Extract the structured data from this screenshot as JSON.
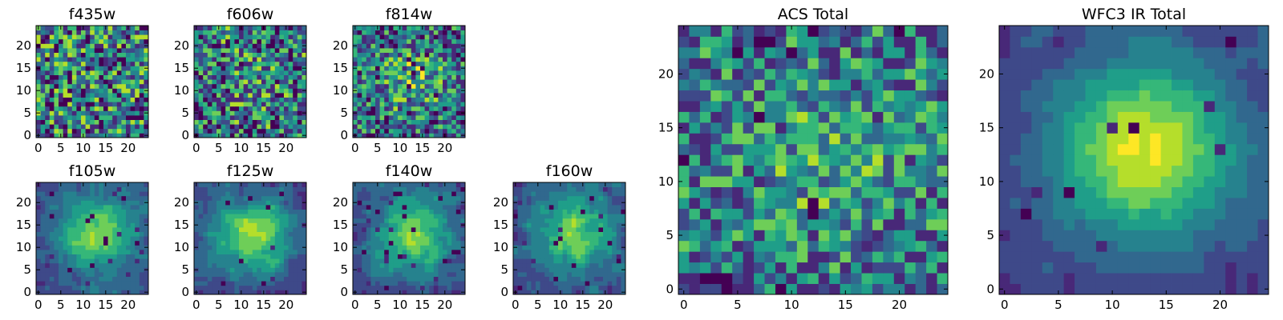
{
  "chart_data": [
    {
      "type": "heatmap",
      "title": "f435w",
      "grid_size": 25,
      "seed": 11,
      "blob": 0.0,
      "noise": 0.55,
      "dark_rate": 0.07,
      "xticks": [
        0,
        5,
        10,
        15,
        20
      ],
      "yticks": [
        0,
        5,
        10,
        15,
        20
      ],
      "colormap": "viridis",
      "xlabel": "",
      "ylabel": ""
    },
    {
      "type": "heatmap",
      "title": "f606w",
      "grid_size": 25,
      "seed": 23,
      "blob": 0.12,
      "noise": 0.5,
      "dark_rate": 0.06,
      "xticks": [
        0,
        5,
        10,
        15,
        20
      ],
      "yticks": [
        0,
        5,
        10,
        15,
        20
      ],
      "colormap": "viridis",
      "xlabel": "",
      "ylabel": ""
    },
    {
      "type": "heatmap",
      "title": "f814w",
      "grid_size": 25,
      "seed": 37,
      "blob": 0.25,
      "noise": 0.45,
      "dark_rate": 0.06,
      "xticks": [
        0,
        5,
        10,
        15,
        20
      ],
      "yticks": [
        0,
        5,
        10,
        15,
        20
      ],
      "colormap": "viridis",
      "xlabel": "",
      "ylabel": ""
    },
    {
      "type": "heatmap",
      "title": "f105w",
      "grid_size": 25,
      "seed": 41,
      "blob": 0.55,
      "noise": 0.3,
      "dark_rate": 0.03,
      "xticks": [
        0,
        5,
        10,
        15,
        20
      ],
      "yticks": [
        0,
        5,
        10,
        15,
        20
      ],
      "colormap": "viridis",
      "xlabel": "",
      "ylabel": ""
    },
    {
      "type": "heatmap",
      "title": "f125w",
      "grid_size": 25,
      "seed": 53,
      "blob": 0.55,
      "noise": 0.3,
      "dark_rate": 0.02,
      "xticks": [
        0,
        5,
        10,
        15,
        20
      ],
      "yticks": [
        0,
        5,
        10,
        15,
        20
      ],
      "colormap": "viridis",
      "xlabel": "",
      "ylabel": ""
    },
    {
      "type": "heatmap",
      "title": "f140w",
      "grid_size": 25,
      "seed": 67,
      "blob": 0.5,
      "noise": 0.35,
      "dark_rate": 0.04,
      "xticks": [
        0,
        5,
        10,
        15,
        20
      ],
      "yticks": [
        0,
        5,
        10,
        15,
        20
      ],
      "colormap": "viridis",
      "xlabel": "",
      "ylabel": ""
    },
    {
      "type": "heatmap",
      "title": "f160w",
      "grid_size": 25,
      "seed": 79,
      "blob": 0.5,
      "noise": 0.35,
      "dark_rate": 0.05,
      "xticks": [
        0,
        5,
        10,
        15,
        20
      ],
      "yticks": [
        0,
        5,
        10,
        15,
        20
      ],
      "colormap": "viridis",
      "xlabel": "",
      "ylabel": ""
    },
    {
      "type": "heatmap",
      "title": "ACS Total",
      "grid_size": 25,
      "seed": 97,
      "blob": 0.2,
      "noise": 0.4,
      "dark_rate": 0.03,
      "xticks": [
        0,
        5,
        10,
        15,
        20
      ],
      "yticks": [
        0,
        5,
        10,
        15,
        20
      ],
      "colormap": "viridis",
      "xlabel": "",
      "ylabel": ""
    },
    {
      "type": "heatmap",
      "title": "WFC3 IR Total",
      "grid_size": 25,
      "seed": 113,
      "blob": 0.7,
      "noise": 0.18,
      "dark_rate": 0.02,
      "xticks": [
        0,
        5,
        10,
        15,
        20
      ],
      "yticks": [
        0,
        5,
        10,
        15,
        20
      ],
      "colormap": "viridis",
      "xlabel": "",
      "ylabel": ""
    }
  ],
  "colors": {
    "viridis": [
      "#440154",
      "#482878",
      "#3e4989",
      "#31688e",
      "#26828e",
      "#1f9e89",
      "#35b779",
      "#6ece58",
      "#b5de2b",
      "#fde725"
    ],
    "axis": "#000000",
    "background": "#ffffff"
  }
}
